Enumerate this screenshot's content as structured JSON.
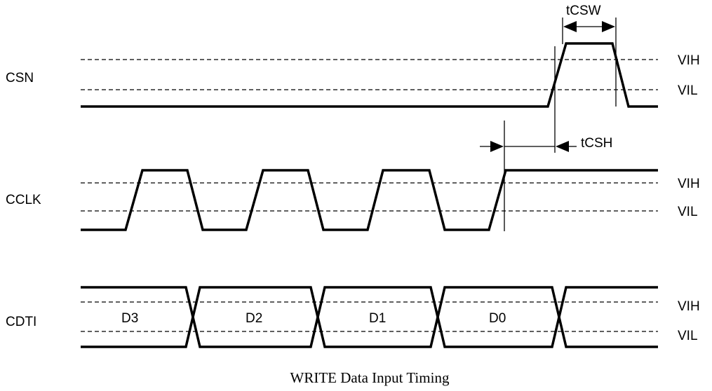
{
  "caption": "WRITE Data Input Timing",
  "signals": {
    "csn": {
      "label": "CSN",
      "vih": "VIH",
      "vil": "VIL"
    },
    "cclk": {
      "label": "CCLK",
      "vih": "VIH",
      "vil": "VIL"
    },
    "cdti": {
      "label": "CDTI",
      "vih": "VIH",
      "vil": "VIL"
    }
  },
  "data_bits": [
    "D3",
    "D2",
    "D1",
    "D0"
  ],
  "timings": {
    "tcsw": "tCSW",
    "tcsh": "tCSH"
  }
}
